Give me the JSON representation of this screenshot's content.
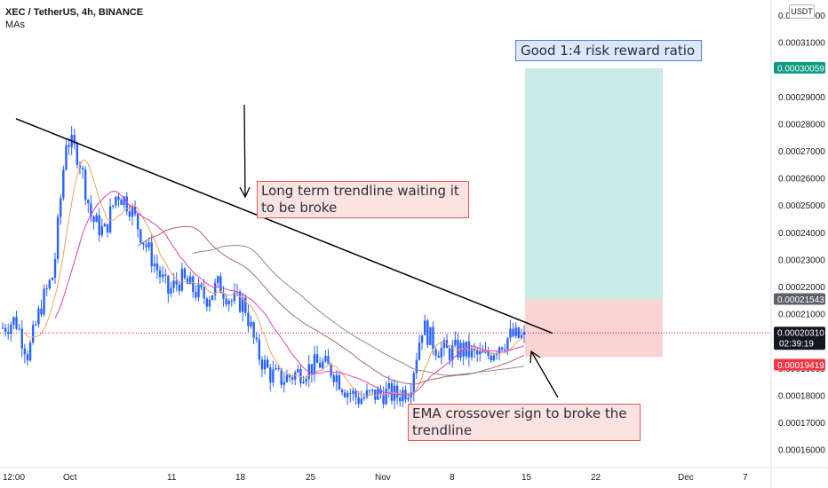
{
  "header": {
    "symbol": "XEC / TetherUS, 4h, BINANCE",
    "indicator": "MAs"
  },
  "currency_button": "USDT",
  "annotations": {
    "trendline_note": "Long term trendline waiting it to be broke",
    "ema_note": "EMA crossover sign to broke the trendline",
    "rr_note": "Good 1:4 risk reward ratio"
  },
  "colors": {
    "up_candle": "#2962ff",
    "down_candle": "#2962ff",
    "target_zone": "#c9ebe6",
    "stop_zone": "#fcd3d3",
    "ema_fast": "#f5a15a",
    "ema_mid": "#e040b8",
    "ma_slow1": "#a86a6a",
    "ma_slow2": "#8a8a8a",
    "trendline": "#000000",
    "label_target": "#089981",
    "label_stop": "#f23645",
    "label_price": "#131722"
  },
  "chart_data": {
    "type": "candlestick",
    "symbol": "XEC / TetherUS",
    "timeframe": "4h",
    "exchange": "BINANCE",
    "y_axis": {
      "range": [
        0.000157,
        0.000326
      ],
      "ticks": [
        "0.00016000",
        "0.00017000",
        "0.00018000",
        "0.00019000",
        "0.00020000",
        "0.00021000",
        "0.00022000",
        "0.00023000",
        "0.00024000",
        "0.00025000",
        "0.00026000",
        "0.00027000",
        "0.00028000",
        "0.00029000",
        "0.00030000",
        "0.00031000",
        "0.00032000"
      ]
    },
    "x_axis": {
      "ticks": [
        "12:00",
        "Oct",
        "11",
        "18",
        "25",
        "Nov",
        "8",
        "15",
        "22",
        "Dec",
        "7"
      ]
    },
    "price_labels": {
      "target": "0.00030059",
      "entry_top": "0.00021543",
      "current": "0.00020310",
      "countdown": "02:39:19",
      "stop": "0.00019419"
    },
    "position": {
      "target": 0.00030059,
      "entry": 0.00021543,
      "stop": 0.00019419
    },
    "trendline": {
      "start": 0.000282,
      "end": 0.000203
    },
    "price_path": [
      [
        0.000205,
        0.0002
      ],
      [
        0.000208,
        0.0002
      ],
      [
        0.000195,
        0.0002
      ],
      [
        0.000213,
        0.0002
      ],
      [
        0.000225,
        0.0002
      ],
      [
        0.000275,
        0.0002
      ],
      [
        0.000268,
        0.0002
      ],
      [
        0.000245,
        0.0002
      ],
      [
        0.00024,
        0.0002
      ],
      [
        0.000255,
        0.0002
      ],
      [
        0.00025,
        0.0002
      ],
      [
        0.000238,
        0.0002
      ],
      [
        0.000228,
        0.0002
      ],
      [
        0.000218,
        0.0002
      ],
      [
        0.000223,
        0.0002
      ],
      [
        0.000219,
        0.0002
      ],
      [
        0.000216,
        0.0002
      ],
      [
        0.000221,
        0.0002
      ],
      [
        0.000215,
        0.0002
      ],
      [
        0.000214,
        0.0002
      ],
      [
        0.000196,
        0.0002
      ],
      [
        0.000188,
        0.0002
      ],
      [
        0.000186,
        0.0002
      ],
      [
        0.000188,
        0.0002
      ],
      [
        0.00019,
        0.0002
      ],
      [
        0.000192,
        0.0002
      ],
      [
        0.000189,
        0.0002
      ],
      [
        0.000182,
        0.0002
      ],
      [
        0.000179,
        0.0002
      ],
      [
        0.00018,
        0.0002
      ],
      [
        0.000181,
        0.0002
      ],
      [
        0.00018,
        0.0002
      ],
      [
        0.000183,
        0.0002
      ],
      [
        0.000206,
        0.0002
      ],
      [
        0.000198,
        0.0002
      ],
      [
        0.000196,
        0.0002
      ],
      [
        0.000197,
        0.0002
      ],
      [
        0.000195,
        0.0002
      ],
      [
        0.000194,
        0.0002
      ],
      [
        0.000199,
        0.0002
      ],
      [
        0.000202,
        0.0002
      ],
      [
        0.000201,
        0.0002
      ]
    ]
  }
}
